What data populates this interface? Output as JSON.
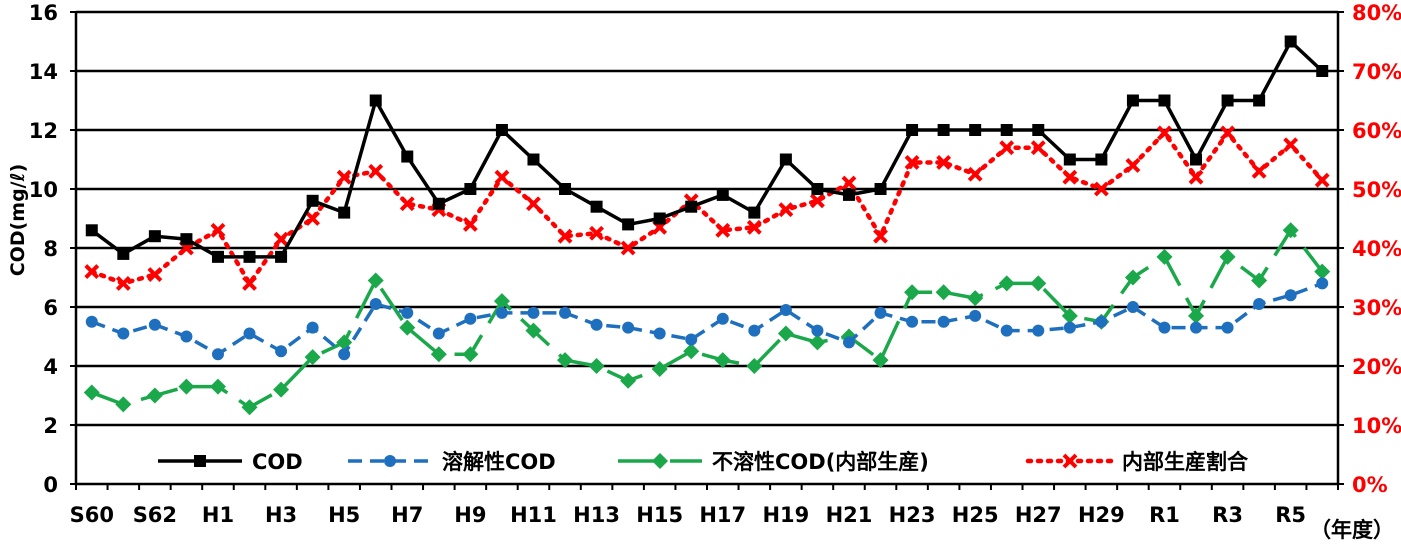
{
  "chart_data": {
    "type": "line",
    "x": [
      "S60",
      "S61",
      "S62",
      "S63",
      "H1",
      "H2",
      "H3",
      "H4",
      "H5",
      "H6",
      "H7",
      "H8",
      "H9",
      "H10",
      "H11",
      "H12",
      "H13",
      "H14",
      "H15",
      "H16",
      "H17",
      "H18",
      "H19",
      "H20",
      "H21",
      "H22",
      "H23",
      "H24",
      "H25",
      "H26",
      "H27",
      "H28",
      "H29",
      "H30",
      "R1",
      "R2",
      "R3",
      "R4",
      "R5",
      "R6"
    ],
    "x_tick_labels": [
      "S60",
      "S62",
      "H1",
      "H3",
      "H5",
      "H7",
      "H9",
      "H11",
      "H13",
      "H15",
      "H17",
      "H19",
      "H21",
      "H23",
      "H25",
      "H27",
      "H29",
      "R1",
      "R3",
      "R5"
    ],
    "x_unit": "（年度）",
    "ylabel": "COD(mg/ℓ)",
    "ylim": [
      0,
      16
    ],
    "y_ticks": [
      0,
      2,
      4,
      6,
      8,
      10,
      12,
      14,
      16
    ],
    "y2lim": [
      0,
      80
    ],
    "y2_ticks": [
      "0%",
      "10%",
      "20%",
      "30%",
      "40%",
      "50%",
      "60%",
      "70%",
      "80%"
    ],
    "grid": true,
    "legend_position": "bottom",
    "series": [
      {
        "name": "COD",
        "axis": "left",
        "color": "#000000",
        "line_style": "solid",
        "marker": "square",
        "values": [
          8.6,
          7.8,
          8.4,
          8.3,
          7.7,
          7.7,
          7.7,
          9.6,
          9.2,
          13.0,
          11.1,
          9.5,
          10.0,
          12.0,
          11.0,
          10.0,
          9.4,
          8.8,
          9.0,
          9.4,
          9.8,
          9.2,
          11.0,
          10.0,
          9.8,
          10.0,
          12.0,
          12.0,
          12.0,
          12.0,
          12.0,
          11.0,
          11.0,
          13.0,
          13.0,
          11.0,
          13.0,
          13.0,
          15.0,
          14.0
        ]
      },
      {
        "name": "溶解性COD",
        "axis": "left",
        "color": "#1f6fbf",
        "line_style": "dashed",
        "marker": "circle",
        "values": [
          5.5,
          5.1,
          5.4,
          5.0,
          4.4,
          5.1,
          4.5,
          5.3,
          4.4,
          6.1,
          5.8,
          5.1,
          5.6,
          5.8,
          5.8,
          5.8,
          5.4,
          5.3,
          5.1,
          4.9,
          5.6,
          5.2,
          5.9,
          5.2,
          4.8,
          5.8,
          5.5,
          5.5,
          5.7,
          5.2,
          5.2,
          5.3,
          5.5,
          6.0,
          5.3,
          5.3,
          5.3,
          6.1,
          6.4,
          6.8
        ]
      },
      {
        "name": "不溶性COD(内部生産)",
        "axis": "left",
        "color": "#1aa84a",
        "line_style": "longdash",
        "marker": "diamond",
        "values": [
          3.1,
          2.7,
          3.0,
          3.3,
          3.3,
          2.6,
          3.2,
          4.3,
          4.8,
          6.9,
          5.3,
          4.4,
          4.4,
          6.2,
          5.2,
          4.2,
          4.0,
          3.5,
          3.9,
          4.5,
          4.2,
          4.0,
          5.1,
          4.8,
          5.0,
          4.2,
          6.5,
          6.5,
          6.3,
          6.8,
          6.8,
          5.7,
          5.5,
          7.0,
          7.7,
          5.7,
          7.7,
          6.9,
          8.6,
          7.2
        ]
      },
      {
        "name": "内部生産割合",
        "axis": "right",
        "color": "#ff0000",
        "line_style": "dotted",
        "marker": "x",
        "values": [
          36,
          34,
          35.5,
          40,
          43,
          34,
          41.5,
          45,
          52,
          53,
          47.5,
          46.5,
          44,
          52,
          47.5,
          42,
          42.5,
          40,
          43.5,
          48,
          43,
          43.5,
          46.5,
          48,
          51,
          42,
          54.5,
          54.5,
          52.5,
          57,
          57,
          52,
          50,
          54,
          59.5,
          52,
          59.5,
          53,
          57.5,
          51.5
        ]
      }
    ]
  }
}
